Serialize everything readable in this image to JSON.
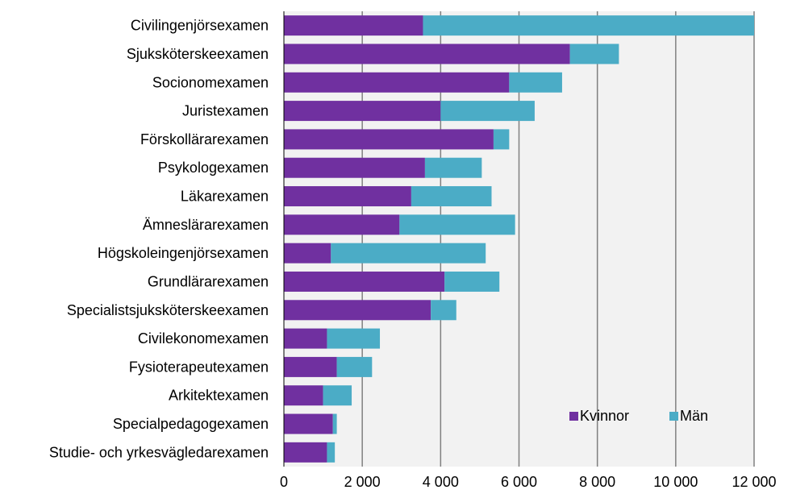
{
  "chart_data": {
    "type": "bar",
    "orientation": "horizontal",
    "stacked": true,
    "categories": [
      "Civilingenjörsexamen",
      "Sjuksköterskeexamen",
      "Socionomexamen",
      "Juristexamen",
      "Förskollärarexamen",
      "Psykologexamen",
      "Läkarexamen",
      "Ämneslärarexamen",
      "Högskoleingenjörsexamen",
      "Grundlärarexamen",
      "Specialistsjuksköterskeexamen",
      "Civilekonomexamen",
      "Fysioterapeutexamen",
      "Arkitektexamen",
      "Specialpedagogexamen",
      "Studie- och yrkesvägledarexamen"
    ],
    "series": [
      {
        "name": "Kvinnor",
        "color": "#7030a0",
        "values": [
          3550,
          7300,
          5750,
          4000,
          5350,
          3600,
          3250,
          2950,
          1200,
          4100,
          3750,
          1100,
          1350,
          1000,
          1250,
          1100
        ]
      },
      {
        "name": "Män",
        "color": "#4bacc6",
        "values": [
          8450,
          1250,
          1350,
          2400,
          400,
          1450,
          2050,
          2950,
          3950,
          1400,
          650,
          1350,
          900,
          730,
          100,
          200
        ]
      }
    ],
    "xlim": [
      0,
      12000
    ],
    "xticks": [
      0,
      2000,
      4000,
      6000,
      8000,
      10000,
      12000
    ],
    "xtick_labels": [
      "0",
      "2 000",
      "4 000",
      "6 000",
      "8 000",
      "10 000",
      "12 000"
    ],
    "grid": "vertical",
    "legend_position": "bottom-right",
    "title": "",
    "xlabel": "",
    "ylabel": "",
    "plot_background": "#f2f2f2",
    "grid_color": "#808080"
  }
}
